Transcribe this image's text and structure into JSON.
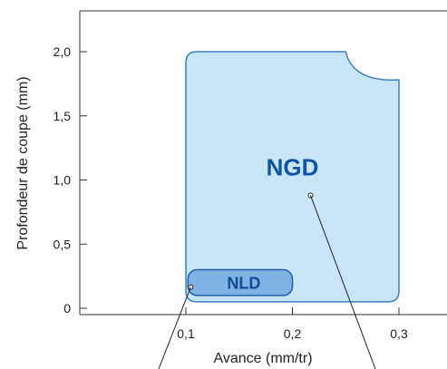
{
  "chart_data": {
    "type": "area",
    "title": "",
    "xlabel": "Avance (mm/tr)",
    "ylabel": "Profondeur de coupe (mm)",
    "xlim": [
      0,
      0.35
    ],
    "ylim": [
      -0.05,
      2.35
    ],
    "x_ticks": [
      {
        "value": 0.1,
        "label": "0,1"
      },
      {
        "value": 0.2,
        "label": "0,2"
      },
      {
        "value": 0.3,
        "label": "0,3"
      }
    ],
    "y_ticks": [
      {
        "value": 0,
        "label": "0"
      },
      {
        "value": 0.5,
        "label": "0,5"
      },
      {
        "value": 1.0,
        "label": "1,0"
      },
      {
        "value": 1.5,
        "label": "1,5"
      },
      {
        "value": 2.0,
        "label": "2,0"
      }
    ],
    "grid": false,
    "regions": [
      {
        "label": "NGD",
        "x_range": [
          0.1,
          0.3
        ],
        "y_range": [
          0.05,
          2.0
        ],
        "notch": {
          "x_start": 0.25,
          "y_end": 1.78
        },
        "fill_color": "#c8e6f8",
        "stroke_color": "#3b7fc4",
        "label_color": "#0e55a5",
        "label_position": [
          0.2,
          1.1
        ],
        "leader_from": [
          0.217,
          0.88
        ]
      },
      {
        "label": "NLD",
        "x_range": [
          0.102,
          0.2
        ],
        "y_range": [
          0.1,
          0.3
        ],
        "fill_color": "#7fb3e3",
        "stroke_color": "#1f5fae",
        "label_color": "#0e4a93",
        "label_position": [
          0.151,
          0.2
        ],
        "leader_from": [
          0.102,
          0.2
        ]
      }
    ]
  }
}
